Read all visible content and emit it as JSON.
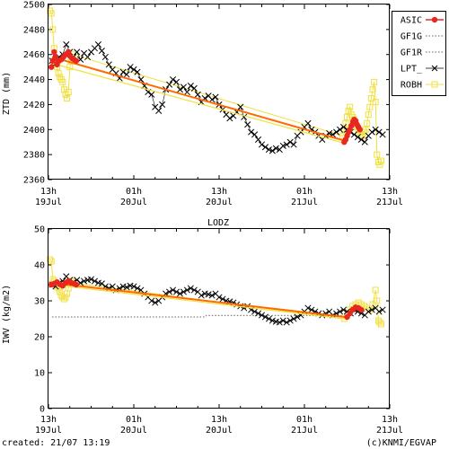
{
  "footer": {
    "created": "created: 21/07 13:19",
    "credit": "(c)KNMI/EGVAP"
  },
  "colors": {
    "ASIC": "#e8281e",
    "GF1G": "#808080",
    "GF1R": "#808080",
    "LPT_": "#000000",
    "ROBH": "#f0e040",
    "trend_ASIC": "#ff6a00",
    "trend_ROBH": "#f0e040"
  },
  "chart_data": [
    {
      "type": "line",
      "title": "",
      "ylabel": "ZTD (mm)",
      "ylim": [
        2360,
        2500
      ],
      "yticks": [
        "2360",
        "2380",
        "2400",
        "2420",
        "2440",
        "2460",
        "2480",
        "2500"
      ],
      "xlim": [
        13,
        61
      ],
      "xticks": [
        {
          "x": 13,
          "top": "13h",
          "bottom": "19Jul"
        },
        {
          "x": 25,
          "top": "01h",
          "bottom": "20Jul"
        },
        {
          "x": 37,
          "top": "13h",
          "bottom": "20Jul"
        },
        {
          "x": 49,
          "top": "01h",
          "bottom": "21Jul"
        },
        {
          "x": 61,
          "top": "13h",
          "bottom": "21Jul"
        }
      ],
      "grid": false,
      "legend": "right",
      "legend_entries": [
        "ASIC",
        "GF1G",
        "GF1R",
        "LPT_",
        "ROBH"
      ],
      "series": [
        {
          "name": "ASIC",
          "style": "points-line",
          "x": [
            13.4,
            13.6,
            13.8,
            14.0,
            14.2,
            14.5,
            14.8,
            15.1,
            15.4,
            15.8,
            16.0,
            16.3,
            16.6,
            16.9
          ],
          "y": [
            2450,
            2455,
            2462,
            2458,
            2452,
            2455,
            2456,
            2458,
            2460,
            2462,
            2459,
            2457,
            2456,
            2455
          ]
        },
        {
          "name": "ASIC",
          "style": "points-line",
          "x": [
            54.6,
            54.8,
            55.0,
            55.2,
            55.4,
            55.6,
            55.8,
            56.0,
            56.2,
            56.4,
            56.6,
            56.8
          ],
          "y": [
            2390,
            2392,
            2395,
            2398,
            2400,
            2403,
            2406,
            2408,
            2407,
            2404,
            2402,
            2400
          ]
        },
        {
          "name": "LPT_",
          "style": "cross-line",
          "x": [
            13.5,
            14,
            14.5,
            15,
            15.5,
            16,
            16.5,
            17,
            17.5,
            18,
            18.5,
            19,
            19.5,
            20,
            20.5,
            21,
            21.5,
            22,
            22.5,
            23,
            23.5,
            24,
            24.5,
            25,
            25.5,
            26,
            26.5,
            27,
            27.5,
            28,
            28.5,
            29,
            29.5,
            30,
            30.5,
            31,
            31.5,
            32,
            32.5,
            33,
            33.5,
            34,
            34.5,
            35,
            35.5,
            36,
            36.5,
            37,
            37.5,
            38,
            38.5,
            39,
            39.5,
            40,
            40.5,
            41,
            41.5,
            42,
            42.5,
            43,
            43.5,
            44,
            44.5,
            45,
            45.5,
            46,
            46.5,
            47,
            47.5,
            48,
            48.5,
            49,
            49.5,
            50,
            50.5,
            51,
            51.5,
            52,
            52.5,
            53,
            53.5,
            54,
            54.5,
            55,
            55.5,
            56,
            56.5,
            57,
            57.5,
            58,
            58.5,
            59,
            59.5,
            60
          ],
          "y": [
            2455,
            2453,
            2458,
            2460,
            2468,
            2462,
            2458,
            2462,
            2456,
            2461,
            2458,
            2462,
            2465,
            2468,
            2463,
            2458,
            2452,
            2448,
            2445,
            2441,
            2446,
            2444,
            2450,
            2448,
            2446,
            2440,
            2435,
            2430,
            2428,
            2418,
            2415,
            2420,
            2432,
            2436,
            2440,
            2438,
            2432,
            2434,
            2430,
            2435,
            2433,
            2428,
            2422,
            2425,
            2427,
            2424,
            2426,
            2420,
            2416,
            2412,
            2409,
            2411,
            2414,
            2418,
            2410,
            2404,
            2398,
            2396,
            2392,
            2388,
            2386,
            2384,
            2383,
            2385,
            2384,
            2387,
            2388,
            2390,
            2388,
            2395,
            2398,
            2402,
            2405,
            2400,
            2398,
            2395,
            2392,
            2395,
            2397,
            2396,
            2398,
            2400,
            2402,
            2400,
            2398,
            2396,
            2394,
            2392,
            2390,
            2395,
            2398,
            2400,
            2398,
            2396
          ]
        },
        {
          "name": "ROBH",
          "style": "square-line",
          "x": [
            13.2,
            13.4,
            13.6,
            13.8,
            14.0,
            14.2,
            14.4,
            14.6,
            14.8,
            15.0,
            15.2,
            15.4,
            15.6,
            15.8,
            16.0,
            16.2,
            16.4,
            54.4,
            54.6,
            54.8,
            55.0,
            55.2,
            55.4,
            55.6,
            55.8,
            56.0,
            56.2,
            56.4,
            56.6,
            56.8,
            57.0,
            57.2,
            57.4,
            57.6,
            57.8,
            58.0,
            58.2,
            58.4,
            58.6,
            58.8,
            59.0,
            59.2,
            59.4,
            59.6,
            59.8
          ],
          "y": [
            2495,
            2493,
            2480,
            2465,
            2455,
            2450,
            2445,
            2442,
            2440,
            2438,
            2432,
            2428,
            2425,
            2430,
            2450,
            2455,
            2460,
            2395,
            2400,
            2405,
            2410,
            2415,
            2418,
            2412,
            2410,
            2408,
            2405,
            2402,
            2400,
            2398,
            2396,
            2395,
            2398,
            2400,
            2405,
            2412,
            2418,
            2425,
            2432,
            2438,
            2422,
            2380,
            2374,
            2372,
            2375
          ]
        },
        {
          "name": "ASIC trend",
          "style": "line",
          "x": [
            13.5,
            54.7
          ],
          "y": [
            2458,
            2391
          ]
        },
        {
          "name": "ROBH trend",
          "style": "line",
          "x": [
            13.5,
            54.7
          ],
          "y": [
            2453,
            2389
          ]
        }
      ]
    },
    {
      "type": "line",
      "title": "LODZ",
      "ylabel": "IWV (kg/m2)",
      "ylim": [
        0,
        50
      ],
      "yticks": [
        "0",
        "10",
        "20",
        "30",
        "40",
        "50"
      ],
      "xlim": [
        13,
        61
      ],
      "xticks": [
        {
          "x": 13,
          "top": "13h",
          "bottom": "19Jul"
        },
        {
          "x": 25,
          "top": "01h",
          "bottom": "20Jul"
        },
        {
          "x": 37,
          "top": "13h",
          "bottom": "20Jul"
        },
        {
          "x": 49,
          "top": "01h",
          "bottom": "21Jul"
        },
        {
          "x": 61,
          "top": "13h",
          "bottom": "21Jul"
        }
      ],
      "grid": false,
      "series": [
        {
          "name": "GF1G",
          "style": "dotted",
          "x": [
            13.5,
            35,
            35.2,
            54.7
          ],
          "y": [
            25.5,
            25.5,
            25.9,
            25.9
          ]
        },
        {
          "name": "ASIC",
          "style": "points-line",
          "x": [
            13.4,
            13.8,
            14.2,
            14.6,
            15.0,
            15.4,
            15.8,
            16.2,
            16.6,
            16.9
          ],
          "y": [
            34.5,
            34.8,
            35.2,
            34.6,
            34.2,
            35.0,
            35.5,
            35.0,
            34.8,
            34.5
          ]
        },
        {
          "name": "ASIC",
          "style": "points-line",
          "x": [
            55.0,
            55.4,
            55.8,
            56.2,
            56.6,
            57.0
          ],
          "y": [
            25.5,
            26.5,
            27.5,
            28.2,
            28.0,
            27.5
          ]
        },
        {
          "name": "LPT_",
          "style": "cross-line",
          "x": [
            13.5,
            14,
            14.5,
            15,
            15.5,
            16,
            16.5,
            17,
            17.5,
            18,
            18.5,
            19,
            19.5,
            20,
            20.5,
            21,
            21.5,
            22,
            22.5,
            23,
            23.5,
            24,
            24.5,
            25,
            25.5,
            26,
            26.5,
            27,
            27.5,
            28,
            28.5,
            29,
            29.5,
            30,
            30.5,
            31,
            31.5,
            32,
            32.5,
            33,
            33.5,
            34,
            34.5,
            35,
            35.5,
            36,
            36.5,
            37,
            37.5,
            38,
            38.5,
            39,
            39.5,
            40,
            40.5,
            41,
            41.5,
            42,
            42.5,
            43,
            43.5,
            44,
            44.5,
            45,
            45.5,
            46,
            46.5,
            47,
            47.5,
            48,
            48.5,
            49,
            49.5,
            50,
            50.5,
            51,
            51.5,
            52,
            52.5,
            53,
            53.5,
            54,
            54.5,
            55,
            55.5,
            56,
            56.5,
            57,
            57.5,
            58,
            58.5,
            59,
            59.5,
            60
          ],
          "y": [
            34.5,
            34.0,
            35.0,
            35.5,
            36.8,
            35.8,
            35.2,
            35.8,
            35.0,
            35.5,
            35.8,
            36.0,
            35.5,
            35.0,
            34.8,
            34.0,
            33.5,
            34.0,
            33.0,
            33.5,
            34.0,
            33.8,
            34.2,
            34.0,
            33.5,
            33.0,
            32.0,
            31.0,
            30.0,
            29.5,
            30.0,
            31.0,
            32.0,
            32.5,
            33.0,
            32.5,
            32.0,
            32.5,
            33.0,
            33.5,
            33.0,
            32.5,
            31.5,
            32.0,
            31.8,
            31.5,
            32.0,
            31.0,
            30.5,
            30.0,
            29.8,
            29.5,
            29.0,
            28.5,
            28.0,
            28.5,
            27.5,
            27.0,
            26.5,
            26.0,
            25.5,
            25.0,
            24.5,
            24.2,
            24.0,
            24.5,
            24.0,
            24.5,
            25.0,
            25.5,
            26.0,
            27.0,
            28.0,
            27.5,
            27.0,
            26.5,
            26.0,
            26.5,
            27.0,
            26.0,
            26.5,
            27.0,
            27.5,
            27.0,
            26.5,
            27.5,
            27.0,
            26.5,
            26.0,
            27.0,
            27.5,
            28.0,
            27.0,
            27.5
          ]
        },
        {
          "name": "ROBH",
          "style": "square-line",
          "x": [
            13.2,
            13.4,
            13.6,
            13.8,
            14.0,
            14.2,
            14.4,
            14.6,
            14.8,
            15.0,
            15.2,
            15.4,
            15.6,
            15.8,
            16.0,
            16.2,
            16.4,
            54.6,
            55.0,
            55.4,
            55.8,
            56.2,
            56.6,
            57.0,
            57.4,
            57.8,
            58.2,
            58.6,
            59.0,
            59.2,
            59.4,
            59.6,
            59.8
          ],
          "y": [
            41.5,
            41.0,
            36.0,
            35.5,
            34.5,
            34.0,
            33.5,
            32.5,
            31.5,
            31.0,
            30.5,
            31.0,
            32.0,
            33.5,
            35.0,
            35.5,
            35.0,
            25.0,
            26.0,
            27.5,
            28.5,
            29.0,
            29.5,
            29.0,
            28.5,
            28.0,
            27.5,
            29.0,
            33.0,
            30.0,
            24.5,
            24.0,
            23.5
          ]
        },
        {
          "name": "ASIC trend",
          "style": "line",
          "x": [
            13.5,
            54.7
          ],
          "y": [
            35.0,
            25.5
          ]
        },
        {
          "name": "ROBH trend",
          "style": "line",
          "x": [
            13.5,
            54.7
          ],
          "y": [
            34.5,
            25.0
          ]
        }
      ]
    }
  ]
}
